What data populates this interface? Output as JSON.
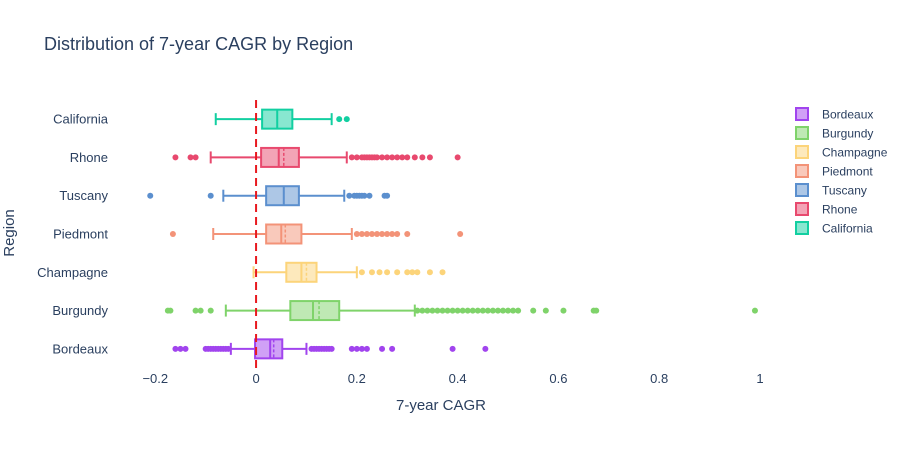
{
  "chart_data": {
    "type": "box",
    "orientation": "horizontal",
    "title": "Distribution of 7-year CAGR by Region",
    "xlabel": "7-year CAGR",
    "ylabel": "Region",
    "xlim": [
      -0.27,
      1.0
    ],
    "xticks": [
      -0.2,
      0,
      0.2,
      0.4,
      0.6,
      0.8,
      1
    ],
    "xtick_labels": [
      "−0.2",
      "0",
      "0.2",
      "0.4",
      "0.6",
      "0.8",
      "1"
    ],
    "reference_line": {
      "x": 0,
      "style": "dashed",
      "color": "#e8191f"
    },
    "grid": false,
    "legend": {
      "position": "top-right"
    },
    "categories": [
      "Bordeaux",
      "Burgundy",
      "Champagne",
      "Piedmont",
      "Tuscany",
      "Rhone",
      "California"
    ],
    "series": [
      {
        "name": "Bordeaux",
        "color": "#a144ee",
        "fill": "rgba(161,68,238,0.5)",
        "lowerfence": -0.05,
        "q1": -0.002,
        "median": 0.028,
        "mean": 0.035,
        "q3": 0.052,
        "upperfence": 0.1,
        "outliers": [
          -0.16,
          -0.15,
          -0.14,
          -0.1,
          -0.095,
          -0.09,
          -0.085,
          -0.08,
          -0.075,
          -0.07,
          -0.065,
          -0.06,
          -0.055,
          0.11,
          0.115,
          0.12,
          0.125,
          0.13,
          0.135,
          0.14,
          0.145,
          0.15,
          0.19,
          0.2,
          0.21,
          0.22,
          0.25,
          0.27,
          0.39,
          0.455
        ]
      },
      {
        "name": "Burgundy",
        "color": "#7fd36a",
        "fill": "rgba(127,211,106,0.5)",
        "lowerfence": -0.06,
        "q1": 0.068,
        "median": 0.113,
        "mean": 0.125,
        "q3": 0.165,
        "upperfence": 0.315,
        "outliers": [
          -0.175,
          -0.17,
          -0.12,
          -0.11,
          -0.09,
          0.32,
          0.33,
          0.34,
          0.35,
          0.36,
          0.37,
          0.38,
          0.39,
          0.4,
          0.41,
          0.42,
          0.43,
          0.44,
          0.45,
          0.46,
          0.47,
          0.48,
          0.49,
          0.5,
          0.51,
          0.52,
          0.55,
          0.575,
          0.61,
          0.67,
          0.675,
          0.99
        ]
      },
      {
        "name": "Champagne",
        "color": "#fcd47a",
        "fill": "rgba(252,212,122,0.5)",
        "lowerfence": -0.005,
        "q1": 0.06,
        "median": 0.09,
        "mean": 0.1,
        "q3": 0.12,
        "upperfence": 0.2,
        "outliers": [
          0.21,
          0.23,
          0.245,
          0.26,
          0.28,
          0.3,
          0.31,
          0.32,
          0.345,
          0.37
        ]
      },
      {
        "name": "Piedmont",
        "color": "#f39378",
        "fill": "rgba(243,147,120,0.5)",
        "lowerfence": -0.085,
        "q1": 0.02,
        "median": 0.05,
        "mean": 0.058,
        "q3": 0.09,
        "upperfence": 0.19,
        "outliers": [
          -0.165,
          0.2,
          0.21,
          0.22,
          0.23,
          0.24,
          0.25,
          0.26,
          0.27,
          0.28,
          0.3,
          0.405
        ]
      },
      {
        "name": "Tuscany",
        "color": "#5b8fce",
        "fill": "rgba(91,143,206,0.5)",
        "lowerfence": -0.065,
        "q1": 0.02,
        "median": 0.055,
        "mean": 0.055,
        "q3": 0.085,
        "upperfence": 0.175,
        "outliers": [
          -0.21,
          -0.09,
          0.185,
          0.195,
          0.2,
          0.205,
          0.21,
          0.215,
          0.225,
          0.255,
          0.26
        ]
      },
      {
        "name": "Rhone",
        "color": "#e8496e",
        "fill": "rgba(232,73,110,0.5)",
        "lowerfence": -0.09,
        "q1": 0.01,
        "median": 0.045,
        "mean": 0.055,
        "q3": 0.085,
        "upperfence": 0.18,
        "outliers": [
          -0.16,
          -0.13,
          -0.12,
          0.19,
          0.2,
          0.21,
          0.215,
          0.22,
          0.225,
          0.23,
          0.235,
          0.24,
          0.25,
          0.26,
          0.27,
          0.28,
          0.29,
          0.3,
          0.315,
          0.33,
          0.345,
          0.4
        ]
      },
      {
        "name": "California",
        "color": "#12cfa1",
        "fill": "rgba(18,207,161,0.5)",
        "lowerfence": -0.08,
        "q1": 0.012,
        "median": 0.042,
        "mean": 0.042,
        "q3": 0.072,
        "upperfence": 0.15,
        "outliers": [
          0.165,
          0.18
        ]
      }
    ]
  }
}
